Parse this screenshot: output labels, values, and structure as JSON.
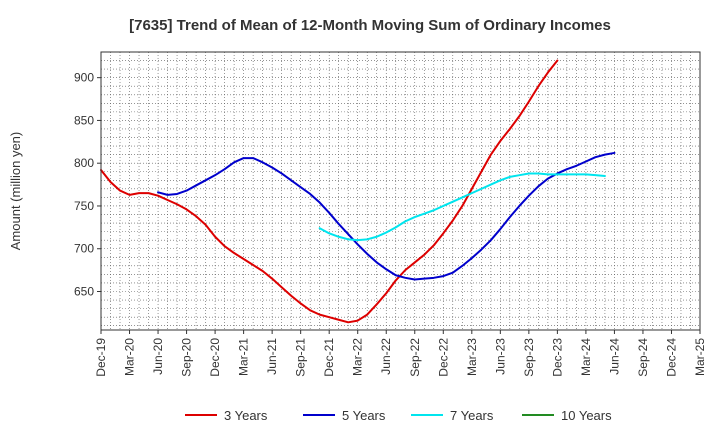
{
  "chart_data": {
    "type": "line",
    "title": "[7635]  Trend of Mean of 12-Month Moving Sum of Ordinary Incomes",
    "xlabel": "",
    "ylabel": "Amount (million yen)",
    "ylim": [
      605,
      930
    ],
    "yticks": [
      650,
      700,
      750,
      800,
      850,
      900
    ],
    "xlim": [
      "Dec-19",
      "Mar-25"
    ],
    "categories": [
      "Dec-19",
      "Mar-20",
      "Jun-20",
      "Sep-20",
      "Dec-20",
      "Mar-21",
      "Jun-21",
      "Sep-21",
      "Dec-21",
      "Mar-22",
      "Jun-22",
      "Sep-22",
      "Dec-22",
      "Mar-23",
      "Jun-23",
      "Sep-23",
      "Dec-23",
      "Mar-24",
      "Jun-24",
      "Sep-24",
      "Dec-24",
      "Mar-25"
    ],
    "grid": true,
    "legend_position": "bottom",
    "series": [
      {
        "name": "3 Years",
        "color": "#dd0000",
        "points": [
          [
            0,
            792
          ],
          [
            1,
            778
          ],
          [
            2,
            768
          ],
          [
            3,
            763
          ],
          [
            4,
            765
          ],
          [
            5,
            765
          ],
          [
            6,
            762
          ],
          [
            7,
            757
          ],
          [
            8,
            752
          ],
          [
            9,
            746
          ],
          [
            10,
            738
          ],
          [
            11,
            728
          ],
          [
            12,
            714
          ],
          [
            13,
            703
          ],
          [
            14,
            695
          ],
          [
            15,
            688
          ],
          [
            16,
            681
          ],
          [
            17,
            674
          ],
          [
            18,
            665
          ],
          [
            19,
            655
          ],
          [
            20,
            645
          ],
          [
            21,
            636
          ],
          [
            22,
            628
          ],
          [
            23,
            623
          ],
          [
            24,
            620
          ],
          [
            25,
            617
          ],
          [
            26,
            614
          ],
          [
            27,
            616
          ],
          [
            28,
            623
          ],
          [
            29,
            635
          ],
          [
            30,
            648
          ],
          [
            31,
            663
          ],
          [
            32,
            675
          ],
          [
            33,
            684
          ],
          [
            34,
            693
          ],
          [
            35,
            704
          ],
          [
            36,
            718
          ],
          [
            37,
            733
          ],
          [
            38,
            750
          ],
          [
            39,
            770
          ],
          [
            40,
            790
          ],
          [
            41,
            810
          ],
          [
            42,
            826
          ],
          [
            43,
            840
          ],
          [
            44,
            855
          ],
          [
            45,
            872
          ],
          [
            46,
            890
          ],
          [
            47,
            906
          ],
          [
            48,
            920
          ]
        ]
      },
      {
        "name": "5 Years",
        "color": "#0000cc",
        "points": [
          [
            6,
            766
          ],
          [
            7,
            763
          ],
          [
            8,
            764
          ],
          [
            9,
            768
          ],
          [
            10,
            774
          ],
          [
            11,
            780
          ],
          [
            12,
            786
          ],
          [
            13,
            793
          ],
          [
            14,
            801
          ],
          [
            15,
            806
          ],
          [
            16,
            806
          ],
          [
            17,
            801
          ],
          [
            18,
            795
          ],
          [
            19,
            788
          ],
          [
            20,
            780
          ],
          [
            21,
            772
          ],
          [
            22,
            764
          ],
          [
            23,
            754
          ],
          [
            24,
            742
          ],
          [
            25,
            729
          ],
          [
            26,
            717
          ],
          [
            27,
            705
          ],
          [
            28,
            694
          ],
          [
            29,
            684
          ],
          [
            30,
            676
          ],
          [
            31,
            669
          ],
          [
            32,
            666
          ],
          [
            33,
            664
          ],
          [
            34,
            665
          ],
          [
            35,
            666
          ],
          [
            36,
            668
          ],
          [
            37,
            672
          ],
          [
            38,
            680
          ],
          [
            39,
            689
          ],
          [
            40,
            699
          ],
          [
            41,
            710
          ],
          [
            42,
            723
          ],
          [
            43,
            737
          ],
          [
            44,
            750
          ],
          [
            45,
            762
          ],
          [
            46,
            773
          ],
          [
            47,
            782
          ],
          [
            48,
            788
          ],
          [
            49,
            793
          ],
          [
            50,
            797
          ],
          [
            51,
            802
          ],
          [
            52,
            807
          ],
          [
            53,
            810
          ],
          [
            54,
            812
          ]
        ]
      },
      {
        "name": "7 Years",
        "color": "#00e5ee",
        "points": [
          [
            23,
            724
          ],
          [
            24,
            718
          ],
          [
            25,
            714
          ],
          [
            26,
            711
          ],
          [
            27,
            710
          ],
          [
            28,
            711
          ],
          [
            29,
            714
          ],
          [
            30,
            719
          ],
          [
            31,
            725
          ],
          [
            32,
            732
          ],
          [
            33,
            737
          ],
          [
            34,
            741
          ],
          [
            35,
            745
          ],
          [
            36,
            750
          ],
          [
            37,
            755
          ],
          [
            38,
            760
          ],
          [
            39,
            765
          ],
          [
            40,
            770
          ],
          [
            41,
            775
          ],
          [
            42,
            780
          ],
          [
            43,
            784
          ],
          [
            44,
            786
          ],
          [
            45,
            788
          ],
          [
            46,
            788
          ],
          [
            47,
            787
          ],
          [
            48,
            787
          ],
          [
            49,
            787
          ],
          [
            50,
            787
          ],
          [
            51,
            787
          ],
          [
            52,
            786
          ],
          [
            53,
            785
          ]
        ]
      },
      {
        "name": "10 Years",
        "color": "#228b22",
        "points": []
      }
    ]
  }
}
